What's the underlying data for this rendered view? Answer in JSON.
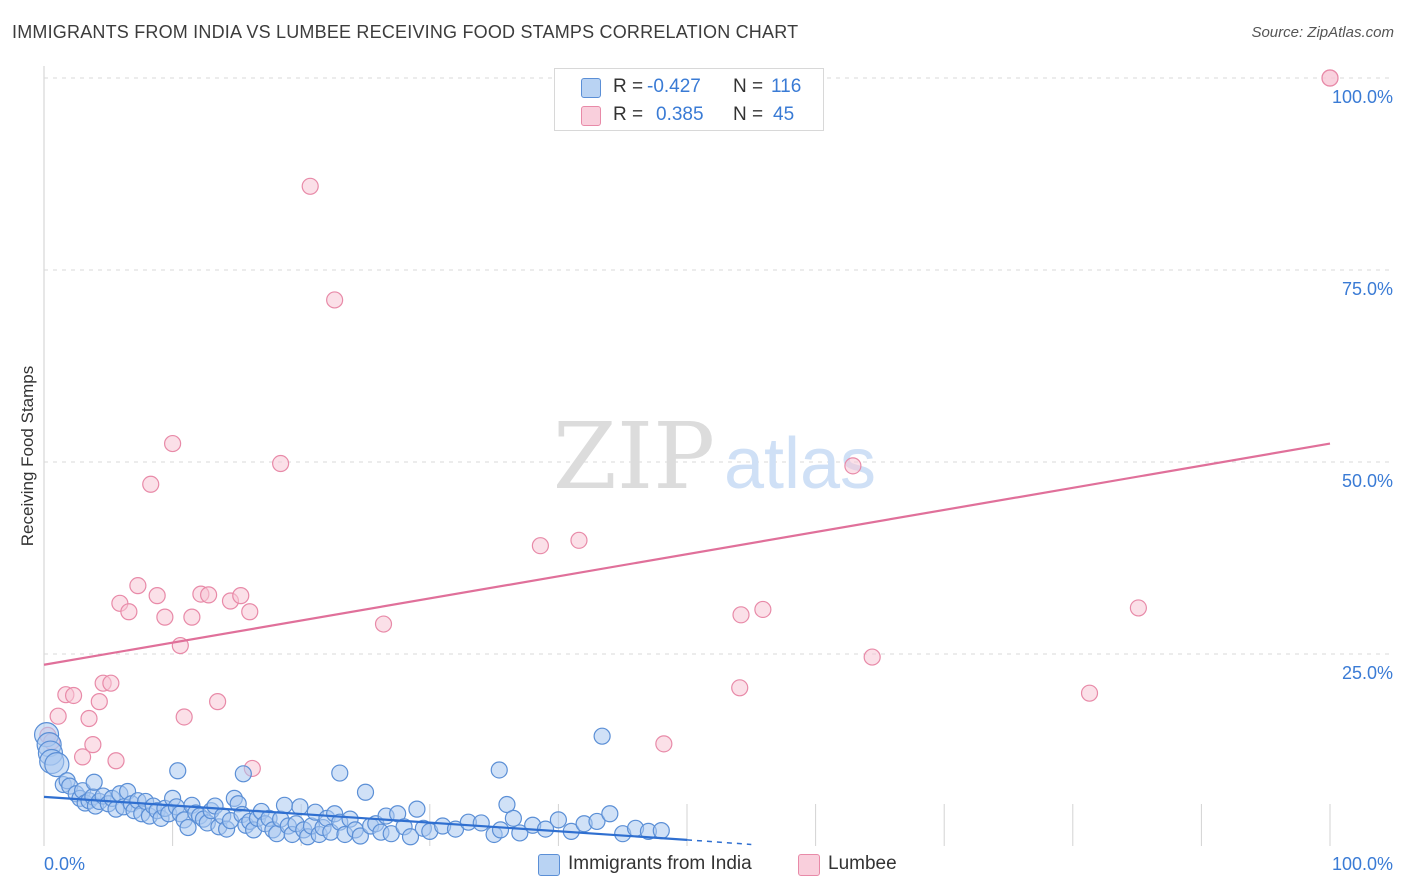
{
  "title": "IMMIGRANTS FROM INDIA VS LUMBEE RECEIVING FOOD STAMPS CORRELATION CHART",
  "source": "Source: ZipAtlas.com",
  "watermark": {
    "zip": "ZIP",
    "atlas": "atlas"
  },
  "legend": {
    "rows": [
      {
        "r_label": "R =",
        "r_value": "-0.427",
        "n_label": "N =",
        "n_value": "116"
      },
      {
        "r_label": "R =",
        "r_value": "0.385",
        "n_label": "N =",
        "n_value": "45"
      }
    ]
  },
  "colors": {
    "india_fill": "#a9c8f0",
    "india_stroke": "#5b8fd6",
    "india_line": "#2f6fd0",
    "lumbee_fill": "#f7c6d6",
    "lumbee_stroke": "#e88aa8",
    "lumbee_line": "#e0709a",
    "tick_text": "#3a7bd5",
    "grid": "#d9d9d9"
  },
  "chart_data": {
    "type": "scatter",
    "title": "IMMIGRANTS FROM INDIA VS LUMBEE RECEIVING FOOD STAMPS CORRELATION CHART",
    "xlabel": "",
    "ylabel": "Receiving Food Stamps",
    "xlim": [
      0,
      100
    ],
    "ylim": [
      0,
      100
    ],
    "x_tick_labels": [
      "0.0%",
      "100.0%"
    ],
    "y_ticks": [
      25,
      50,
      75,
      100
    ],
    "y_tick_labels": [
      "25.0%",
      "50.0%",
      "75.0%",
      "100.0%"
    ],
    "grid": true,
    "legend_position": "top-center",
    "series": [
      {
        "name": "Immigrants from India",
        "r": -0.427,
        "n": 116,
        "trend": {
          "x": [
            0,
            50
          ],
          "y": [
            6.4,
            0.8
          ],
          "dashed_to": [
            55,
            0.2
          ]
        },
        "points": [
          [
            0.2,
            14.5
          ],
          [
            0.4,
            13.2
          ],
          [
            0.5,
            12.1
          ],
          [
            0.6,
            11.0
          ],
          [
            1.0,
            10.6
          ],
          [
            1.5,
            8.0
          ],
          [
            1.8,
            8.5
          ],
          [
            2.0,
            7.8
          ],
          [
            2.5,
            6.8
          ],
          [
            2.8,
            6.2
          ],
          [
            3.0,
            7.2
          ],
          [
            3.2,
            5.6
          ],
          [
            3.5,
            5.9
          ],
          [
            3.8,
            6.4
          ],
          [
            4.0,
            5.2
          ],
          [
            4.3,
            5.8
          ],
          [
            4.6,
            6.5
          ],
          [
            5.0,
            5.5
          ],
          [
            5.3,
            6.2
          ],
          [
            5.6,
            4.8
          ],
          [
            5.9,
            6.8
          ],
          [
            6.2,
            5.1
          ],
          [
            6.5,
            7.1
          ],
          [
            6.8,
            5.5
          ],
          [
            7.0,
            4.6
          ],
          [
            7.3,
            5.9
          ],
          [
            7.6,
            4.2
          ],
          [
            7.9,
            5.8
          ],
          [
            8.2,
            3.9
          ],
          [
            8.5,
            5.2
          ],
          [
            8.8,
            4.6
          ],
          [
            9.1,
            3.6
          ],
          [
            9.4,
            4.9
          ],
          [
            9.7,
            4.2
          ],
          [
            10.0,
            6.2
          ],
          [
            10.3,
            5.1
          ],
          [
            10.6,
            4.2
          ],
          [
            10.9,
            3.4
          ],
          [
            11.2,
            2.4
          ],
          [
            11.5,
            5.3
          ],
          [
            11.8,
            4.3
          ],
          [
            12.1,
            3.9
          ],
          [
            12.4,
            3.5
          ],
          [
            12.7,
            3.0
          ],
          [
            13.0,
            4.6
          ],
          [
            13.3,
            5.2
          ],
          [
            13.6,
            2.5
          ],
          [
            13.9,
            3.9
          ],
          [
            14.2,
            2.2
          ],
          [
            14.5,
            3.3
          ],
          [
            14.8,
            6.2
          ],
          [
            15.1,
            5.5
          ],
          [
            15.4,
            4.1
          ],
          [
            15.7,
            2.7
          ],
          [
            16.0,
            3.2
          ],
          [
            16.3,
            2.1
          ],
          [
            16.6,
            3.6
          ],
          [
            16.9,
            4.5
          ],
          [
            17.2,
            2.9
          ],
          [
            17.5,
            3.6
          ],
          [
            17.8,
            2.1
          ],
          [
            18.1,
            1.6
          ],
          [
            18.4,
            3.5
          ],
          [
            18.7,
            5.3
          ],
          [
            19.0,
            2.6
          ],
          [
            19.3,
            1.5
          ],
          [
            19.6,
            2.9
          ],
          [
            19.9,
            5.1
          ],
          [
            20.2,
            2.1
          ],
          [
            20.5,
            1.2
          ],
          [
            20.8,
            2.6
          ],
          [
            21.1,
            4.4
          ],
          [
            21.4,
            1.5
          ],
          [
            21.7,
            2.4
          ],
          [
            22.0,
            3.6
          ],
          [
            22.3,
            1.8
          ],
          [
            22.6,
            4.2
          ],
          [
            23.0,
            3.1
          ],
          [
            23.4,
            1.5
          ],
          [
            23.8,
            3.5
          ],
          [
            24.2,
            2.1
          ],
          [
            24.6,
            1.3
          ],
          [
            25.0,
            7.0
          ],
          [
            25.4,
            2.6
          ],
          [
            25.8,
            2.9
          ],
          [
            26.2,
            1.8
          ],
          [
            26.6,
            3.9
          ],
          [
            27.0,
            1.6
          ],
          [
            27.5,
            4.2
          ],
          [
            28.0,
            2.5
          ],
          [
            28.5,
            1.2
          ],
          [
            29.0,
            4.8
          ],
          [
            29.5,
            2.3
          ],
          [
            30.0,
            1.9
          ],
          [
            31.0,
            2.6
          ],
          [
            32.0,
            2.2
          ],
          [
            33.0,
            3.1
          ],
          [
            34.0,
            3.0
          ],
          [
            35.0,
            1.5
          ],
          [
            35.5,
            2.1
          ],
          [
            36.0,
            5.4
          ],
          [
            36.5,
            3.6
          ],
          [
            37.0,
            1.7
          ],
          [
            38.0,
            2.7
          ],
          [
            39.0,
            2.2
          ],
          [
            40.0,
            3.4
          ],
          [
            41.0,
            1.9
          ],
          [
            42.0,
            2.9
          ],
          [
            43.0,
            3.2
          ],
          [
            44.0,
            4.2
          ],
          [
            45.0,
            1.6
          ],
          [
            46.0,
            2.3
          ],
          [
            47.0,
            1.9
          ],
          [
            48.0,
            2.0
          ],
          [
            10.4,
            9.8
          ],
          [
            15.5,
            9.4
          ],
          [
            23.0,
            9.5
          ],
          [
            35.4,
            9.9
          ],
          [
            43.4,
            14.3
          ],
          [
            3.9,
            8.3
          ]
        ]
      },
      {
        "name": "Lumbee",
        "r": 0.385,
        "n": 45,
        "trend": {
          "x": [
            0,
            100
          ],
          "y": [
            23.6,
            52.4
          ]
        },
        "points": [
          [
            0.3,
            14.4
          ],
          [
            0.6,
            13.6
          ],
          [
            1.1,
            16.9
          ],
          [
            1.7,
            19.7
          ],
          [
            2.3,
            19.6
          ],
          [
            3.0,
            11.6
          ],
          [
            3.5,
            16.6
          ],
          [
            3.8,
            13.2
          ],
          [
            4.3,
            18.8
          ],
          [
            4.6,
            21.2
          ],
          [
            5.2,
            21.2
          ],
          [
            5.6,
            11.1
          ],
          [
            5.9,
            31.6
          ],
          [
            6.6,
            30.5
          ],
          [
            7.3,
            33.9
          ],
          [
            8.3,
            47.1
          ],
          [
            8.8,
            32.6
          ],
          [
            9.4,
            29.8
          ],
          [
            10.0,
            52.4
          ],
          [
            10.6,
            26.1
          ],
          [
            10.9,
            16.8
          ],
          [
            11.5,
            29.8
          ],
          [
            12.2,
            32.8
          ],
          [
            12.8,
            32.7
          ],
          [
            13.5,
            18.8
          ],
          [
            14.5,
            31.9
          ],
          [
            15.3,
            32.6
          ],
          [
            16.0,
            30.5
          ],
          [
            16.2,
            10.1
          ],
          [
            18.4,
            49.8
          ],
          [
            20.7,
            85.9
          ],
          [
            22.6,
            71.1
          ],
          [
            26.4,
            28.9
          ],
          [
            38.6,
            39.1
          ],
          [
            41.6,
            39.8
          ],
          [
            48.2,
            13.3
          ],
          [
            54.1,
            20.6
          ],
          [
            54.2,
            30.1
          ],
          [
            55.9,
            30.8
          ],
          [
            62.9,
            49.5
          ],
          [
            64.4,
            24.6
          ],
          [
            81.3,
            19.9
          ],
          [
            85.1,
            31.0
          ],
          [
            100.0,
            100.0
          ],
          [
            100.0,
            100.0
          ]
        ]
      }
    ]
  },
  "bottom_legend": [
    {
      "label": "Immigrants from India"
    },
    {
      "label": "Lumbee"
    }
  ]
}
